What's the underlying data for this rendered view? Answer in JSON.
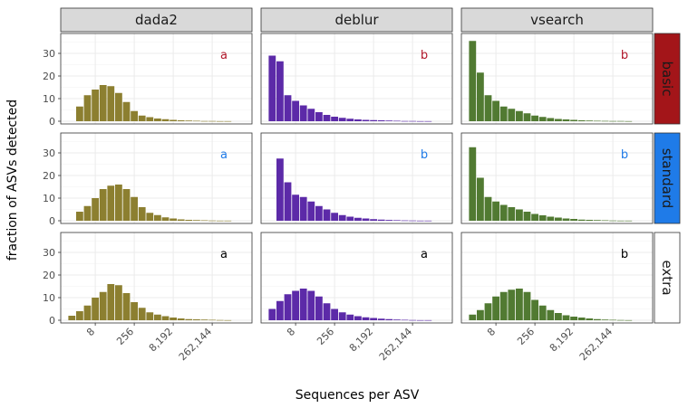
{
  "chart_data": {
    "type": "bar",
    "xlabel": "Sequences per ASV",
    "ylabel": "fraction of ASVs detected",
    "ylim": [
      0,
      38
    ],
    "yticks": [
      0,
      10,
      20,
      30
    ],
    "x_ticks": [
      {
        "label": "8",
        "exp": 3
      },
      {
        "label": "256",
        "exp": 8
      },
      {
        "label": "8,192",
        "exp": 13
      },
      {
        "label": "262,144",
        "exp": 18
      }
    ],
    "x_bins_log2": [
      0,
      1,
      2,
      3,
      4,
      5,
      6,
      7,
      8,
      9,
      10,
      11,
      12,
      13,
      14,
      15,
      16,
      17,
      18,
      19,
      20
    ],
    "columns": [
      {
        "name": "dada2",
        "color": "#8c7f30"
      },
      {
        "name": "deblur",
        "color": "#5c2aa8"
      },
      {
        "name": "vsearch",
        "color": "#517a32"
      }
    ],
    "rows": [
      {
        "name": "basic",
        "strip_color": "#a31519",
        "letter_color": "#b2182b"
      },
      {
        "name": "standard",
        "strip_color": "#1f7be8",
        "letter_color": "#1f7be8"
      },
      {
        "name": "extra",
        "strip_color": "#ffffff",
        "letter_color": "#000000"
      }
    ],
    "panels": [
      {
        "row": "basic",
        "col": "dada2",
        "letter": "a",
        "values": [
          0,
          6.5,
          11.5,
          14,
          16,
          15.5,
          12.5,
          8.5,
          4.5,
          2.5,
          1.8,
          1.2,
          0.9,
          0.6,
          0.4,
          0.3,
          0.2,
          0.1,
          0.1,
          0.05,
          0.05
        ]
      },
      {
        "row": "basic",
        "col": "deblur",
        "letter": "b",
        "values": [
          29,
          26.5,
          11.5,
          9,
          7,
          5.5,
          4,
          2.8,
          2,
          1.5,
          1.1,
          0.8,
          0.6,
          0.5,
          0.4,
          0.3,
          0.2,
          0.1,
          0.1,
          0.05,
          0.05
        ]
      },
      {
        "row": "basic",
        "col": "vsearch",
        "letter": "b",
        "values": [
          35.5,
          21.5,
          11.5,
          9,
          6.5,
          5.5,
          4.5,
          3.5,
          2.5,
          1.9,
          1.4,
          1,
          0.8,
          0.6,
          0.4,
          0.3,
          0.2,
          0.15,
          0.1,
          0.1,
          0.05
        ]
      },
      {
        "row": "standard",
        "col": "dada2",
        "letter": "a",
        "values": [
          0,
          4,
          6.5,
          10,
          14,
          15.5,
          16,
          14,
          10.5,
          6,
          3.5,
          2.5,
          1.5,
          1,
          0.6,
          0.4,
          0.3,
          0.2,
          0.1,
          0.05,
          0.05
        ]
      },
      {
        "row": "standard",
        "col": "deblur",
        "letter": "b",
        "values": [
          0,
          27.5,
          17,
          11.5,
          10.5,
          8.5,
          6.5,
          5,
          3.5,
          2.5,
          1.8,
          1.3,
          1,
          0.7,
          0.5,
          0.35,
          0.25,
          0.15,
          0.1,
          0.05,
          0.05
        ]
      },
      {
        "row": "standard",
        "col": "vsearch",
        "letter": "b",
        "values": [
          32.5,
          19,
          10.5,
          8.5,
          7,
          6,
          5,
          4,
          3,
          2.4,
          1.8,
          1.4,
          1,
          0.8,
          0.5,
          0.4,
          0.3,
          0.2,
          0.1,
          0.05,
          0.05
        ]
      },
      {
        "row": "extra",
        "col": "dada2",
        "letter": "a",
        "values": [
          2,
          4,
          6.5,
          10,
          12.5,
          16,
          15.5,
          12,
          8,
          5.5,
          3.5,
          2.5,
          1.8,
          1.2,
          0.8,
          0.5,
          0.4,
          0.3,
          0.2,
          0.1,
          0.05
        ]
      },
      {
        "row": "extra",
        "col": "deblur",
        "letter": "a",
        "values": [
          5,
          8.5,
          11.5,
          13,
          14,
          13,
          10.5,
          7.5,
          5,
          3.5,
          2.5,
          1.8,
          1.3,
          1,
          0.7,
          0.5,
          0.3,
          0.2,
          0.1,
          0.05,
          0.05
        ]
      },
      {
        "row": "extra",
        "col": "vsearch",
        "letter": "b",
        "values": [
          2.5,
          4.5,
          7.5,
          10.5,
          12.5,
          13.5,
          14,
          12.5,
          9,
          6.5,
          4.5,
          3.2,
          2.2,
          1.6,
          1.2,
          0.8,
          0.5,
          0.3,
          0.2,
          0.1,
          0.05
        ]
      }
    ]
  }
}
